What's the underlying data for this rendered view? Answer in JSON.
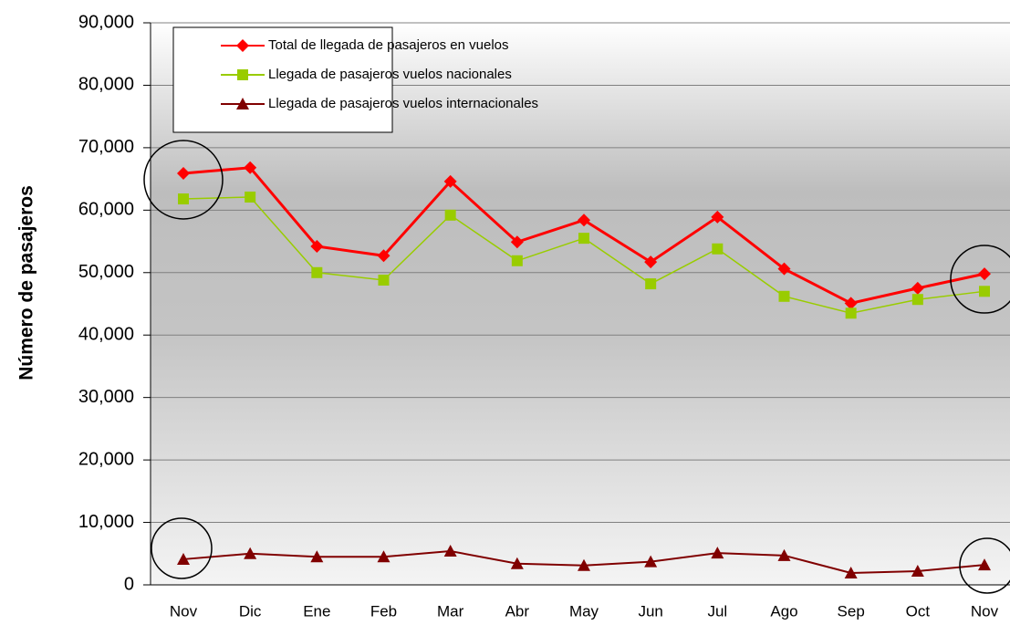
{
  "chart_data": {
    "type": "line",
    "y_label": "Número de pasajeros",
    "categories": [
      "Nov",
      "Dic",
      "Ene",
      "Feb",
      "Mar",
      "Abr",
      "May",
      "Jun",
      "Jul",
      "Ago",
      "Sep",
      "Oct",
      "Nov"
    ],
    "series": [
      {
        "name": "Total de llegada de pasajeros en vuelos",
        "color": "#ff0000",
        "marker": "diamond",
        "values": [
          65900,
          66800,
          54200,
          52700,
          64600,
          54900,
          58400,
          51700,
          58900,
          50600,
          45100,
          47500,
          49800
        ]
      },
      {
        "name": "Llegada de pasajeros vuelos nacionales",
        "color": "#99cc00",
        "marker": "square",
        "values": [
          61800,
          62100,
          50000,
          48800,
          59200,
          51900,
          55500,
          48200,
          53800,
          46200,
          43500,
          45700,
          47000
        ]
      },
      {
        "name": "Llegada de pasajeros vuelos internacionales",
        "color": "#800000",
        "marker": "triangle",
        "values": [
          4100,
          5000,
          4500,
          4500,
          5400,
          3400,
          3100,
          3700,
          5100,
          4700,
          1900,
          2200,
          3200
        ]
      }
    ],
    "ylim": [
      0,
      90000
    ],
    "yticks": [
      0,
      {
        "value": 10000,
        "label": "10,000"
      },
      {
        "value": 20000,
        "label": "20,000"
      },
      {
        "value": 30000,
        "label": "30,000"
      },
      {
        "value": 40000,
        "label": "40,000"
      },
      {
        "value": 50000,
        "label": "50,000"
      },
      {
        "value": 60000,
        "label": "60,000"
      },
      {
        "value": 70000,
        "label": "70,000"
      },
      {
        "value": 80000,
        "label": "80,000"
      },
      {
        "value": 90000,
        "label": "90,000"
      }
    ],
    "grid": true,
    "legend": "upper left"
  }
}
